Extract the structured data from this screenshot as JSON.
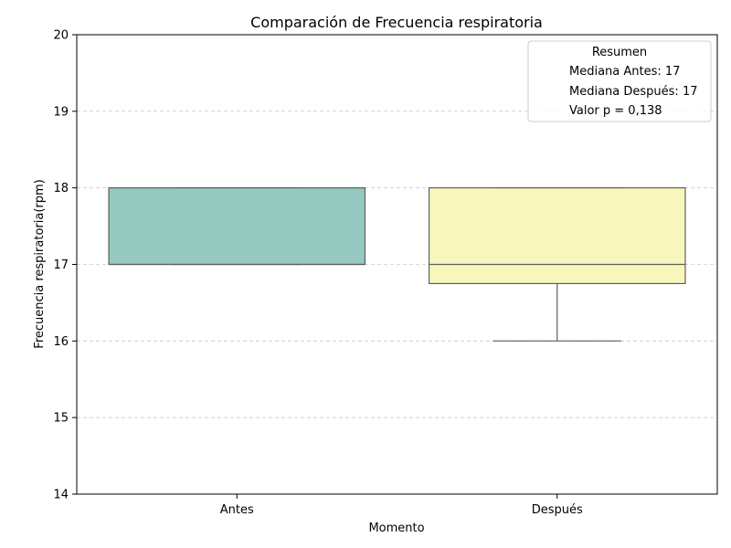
{
  "chart_data": {
    "type": "box",
    "title": "Comparación de Frecuencia respiratoria",
    "xlabel": "Momento",
    "ylabel": "Frecuencia respiratoria(rpm)",
    "ylim": [
      14,
      20
    ],
    "yticks": [
      14,
      15,
      16,
      17,
      18,
      19,
      20
    ],
    "grid": "y-dashed",
    "categories": [
      "Antes",
      "Después"
    ],
    "boxes": [
      {
        "category": "Antes",
        "whisker_low": 17,
        "q1": 17,
        "median": 17,
        "q3": 18,
        "whisker_high": 18,
        "color": "#96c9bf"
      },
      {
        "category": "Después",
        "whisker_low": 16,
        "q1": 16.75,
        "median": 17,
        "q3": 18,
        "whisker_high": 18,
        "color": "#f7f7bb"
      }
    ],
    "legend": {
      "placement": "top-right",
      "title": "Resumen",
      "entries": [
        "Mediana Antes: 17",
        "Mediana Después: 17",
        "Valor p = 0,138"
      ]
    }
  }
}
